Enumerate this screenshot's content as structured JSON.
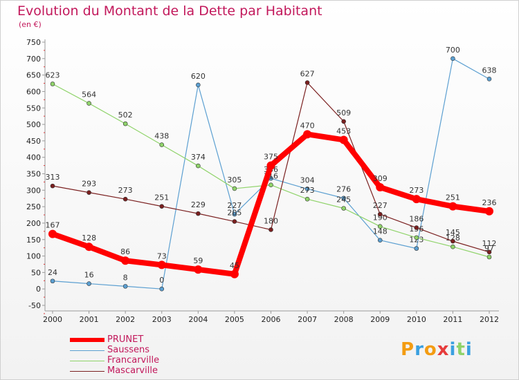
{
  "chart_data": {
    "type": "line",
    "title": "Evolution du Montant de la Dette par Habitant",
    "subtitle": "(en €)",
    "x": [
      "2000",
      "2001",
      "2002",
      "2003",
      "2004",
      "2005",
      "2006",
      "2007",
      "2008",
      "2009",
      "2010",
      "2011",
      "2012"
    ],
    "ylim": [
      -50,
      750
    ],
    "yticks": [
      -50,
      0,
      50,
      100,
      150,
      200,
      250,
      300,
      350,
      400,
      450,
      500,
      550,
      600,
      650,
      700,
      750
    ],
    "grid": false,
    "legend_position": "bottom-left",
    "series": [
      {
        "name": "Saussens",
        "color": "#5b9fd1",
        "values": [
          24,
          16,
          8,
          0,
          620,
          227,
          336,
          304,
          276,
          148,
          123,
          700,
          638
        ]
      },
      {
        "name": "Francarville",
        "color": "#8fd36a",
        "values": [
          623,
          564,
          502,
          438,
          374,
          305,
          316,
          273,
          245,
          190,
          156,
          128,
          97
        ]
      },
      {
        "name": "Mascarville",
        "color": "#7a1f1f",
        "values": [
          313,
          293,
          273,
          251,
          229,
          205,
          180,
          627,
          509,
          227,
          186,
          145,
          112
        ]
      },
      {
        "name": "PRUNET",
        "color": "#ff0000",
        "values": [
          167,
          128,
          86,
          73,
          59,
          45,
          375,
          470,
          453,
          309,
          273,
          251,
          236
        ]
      }
    ],
    "data_labels": [
      [
        "24",
        "16",
        "8",
        "0",
        "620",
        "227",
        "336",
        "304",
        "276",
        "148",
        "123",
        "700",
        "638"
      ],
      [
        "623",
        "564",
        "502",
        "438",
        "374",
        "305",
        "316",
        "273",
        "245",
        "190",
        "156",
        "128",
        "97"
      ],
      [
        "313",
        "293",
        "273",
        "251",
        "229",
        "205",
        "180",
        "627",
        "509",
        "227",
        "186",
        "145",
        "112"
      ],
      [
        "167",
        "128",
        "86",
        "73",
        "59",
        "45",
        "375",
        "470",
        "453",
        "309",
        "273",
        "251",
        "236"
      ]
    ]
  },
  "legend": {
    "items": [
      {
        "label": "PRUNET",
        "color": "#ff0000"
      },
      {
        "label": "Saussens",
        "color": "#5b9fd1"
      },
      {
        "label": "Francarville",
        "color": "#8fd36a"
      },
      {
        "label": "Mascarville",
        "color": "#7a1f1f"
      }
    ]
  },
  "logo": {
    "text": "Proxiti"
  }
}
